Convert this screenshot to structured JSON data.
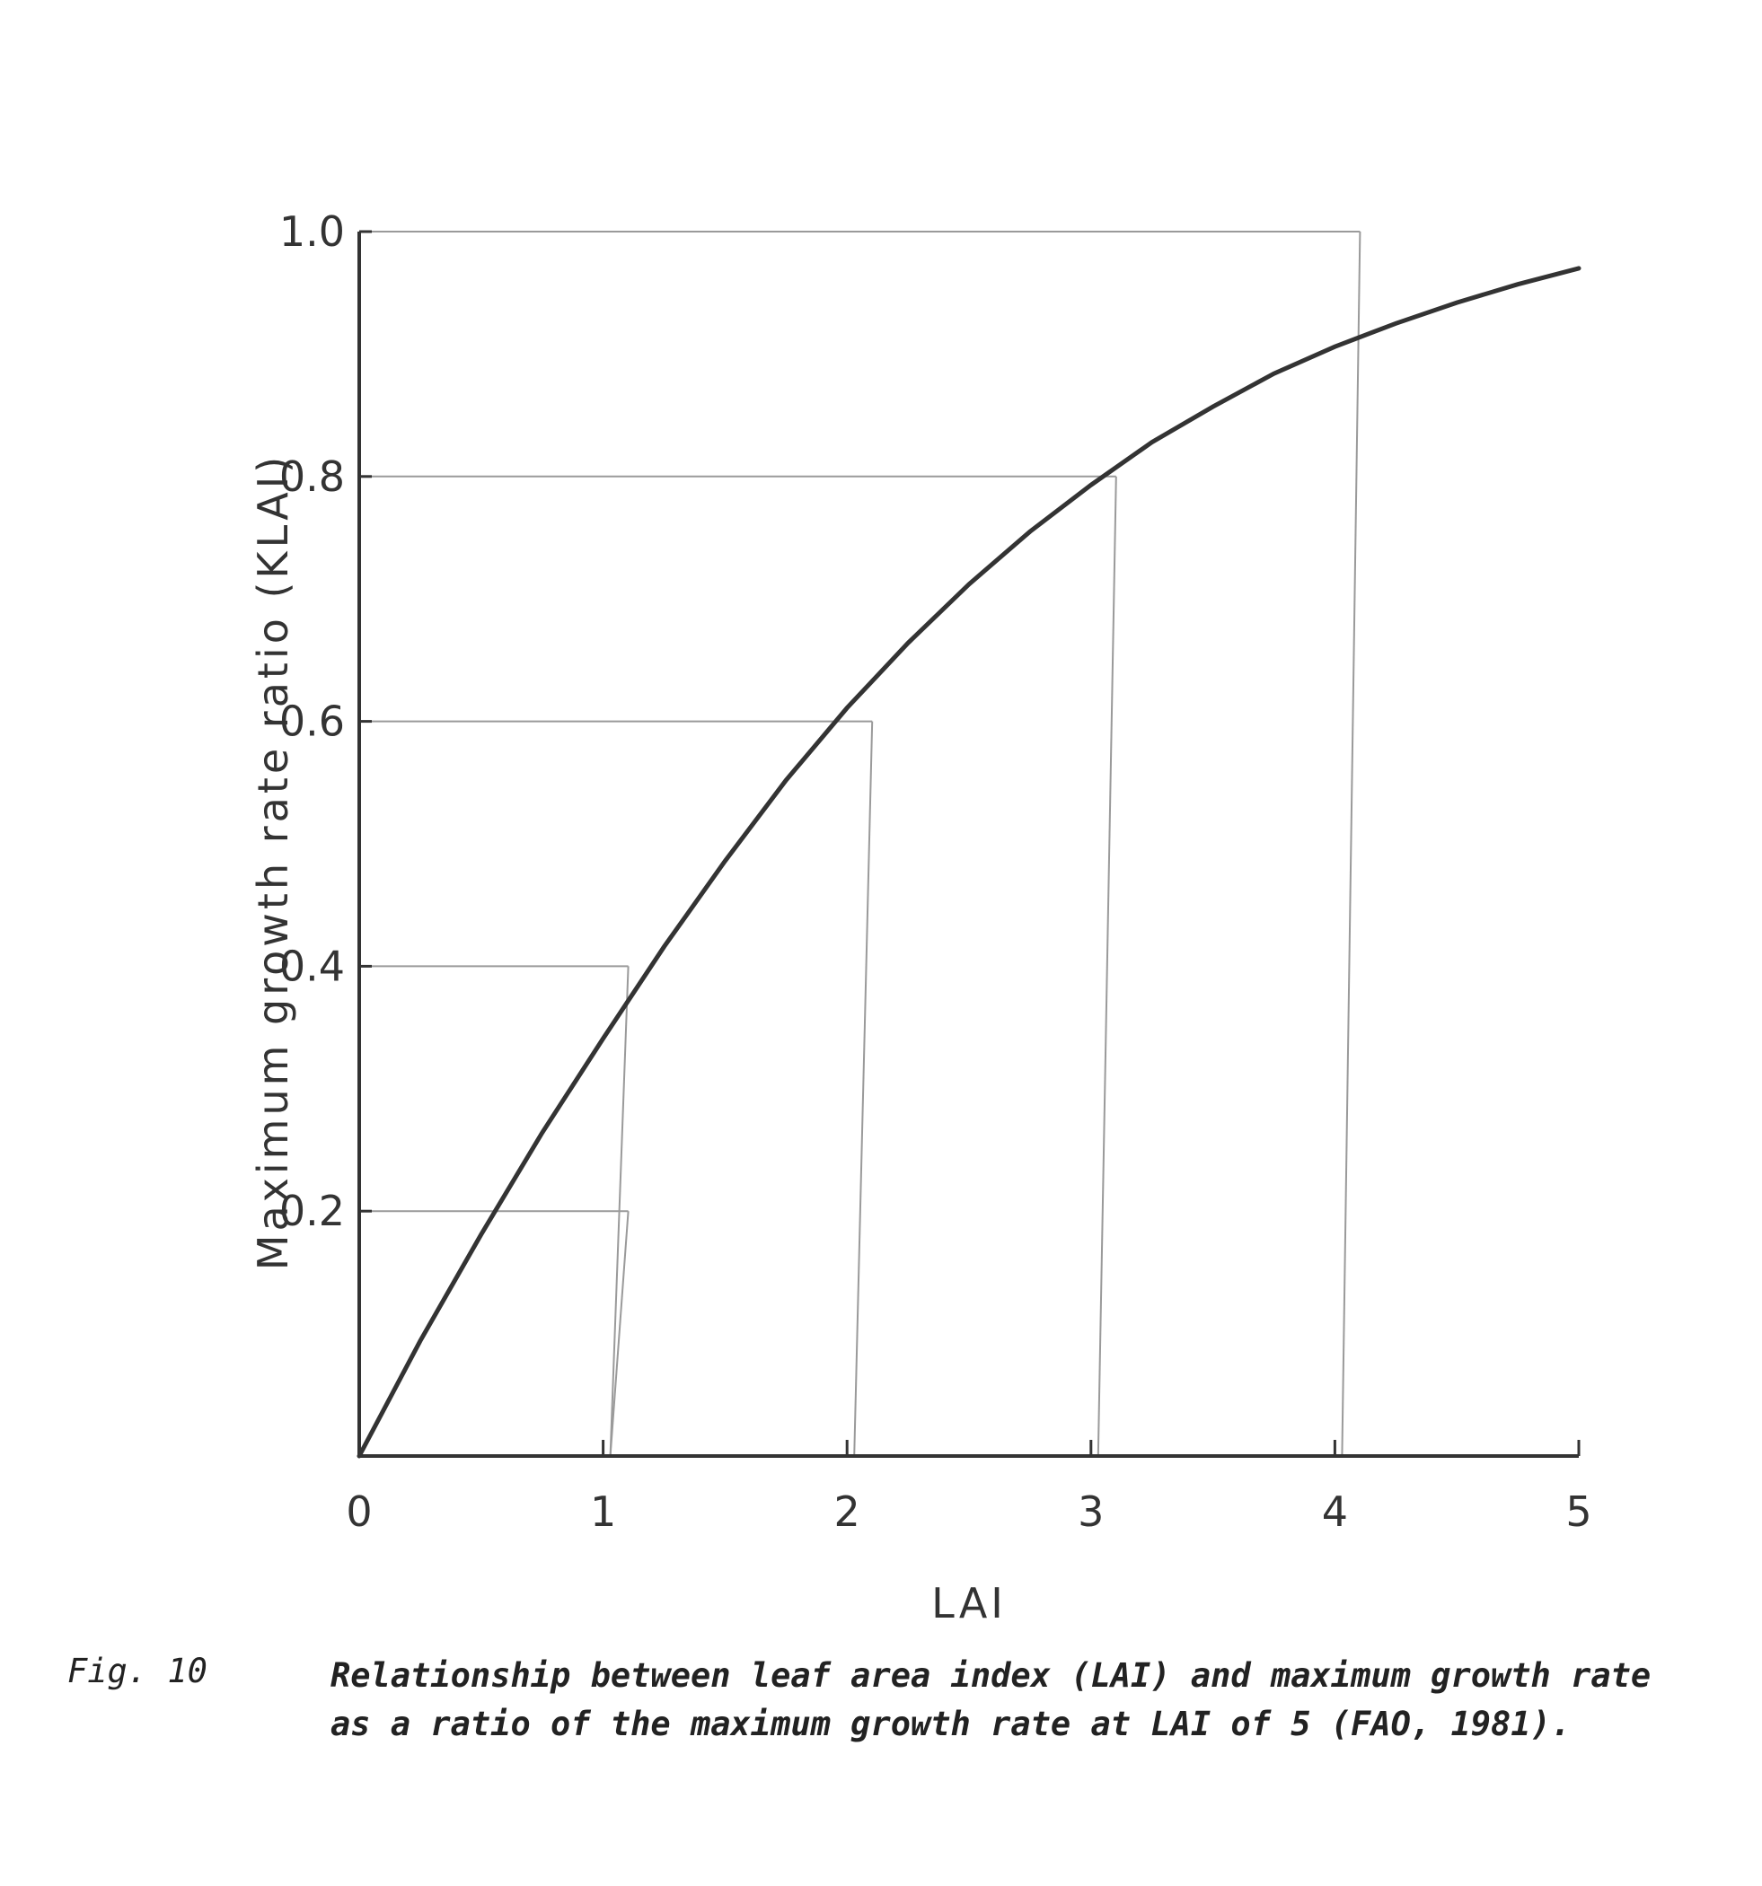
{
  "chart_data": {
    "type": "line",
    "xlabel": "LAI",
    "ylabel": "Maximum growth rate ratio (KLAI)",
    "xlim": [
      0,
      5
    ],
    "ylim": [
      0,
      1.0
    ],
    "x_ticks": [
      "0",
      "1",
      "2",
      "3",
      "4",
      "5"
    ],
    "y_ticks": [
      "0.2",
      "0.4",
      "0.6",
      "0.8",
      "1.0"
    ],
    "grid": false,
    "series": [
      {
        "x": [
          0,
          0.25,
          0.5,
          0.75,
          1.0,
          1.25,
          1.5,
          1.75,
          2.0,
          2.25,
          2.5,
          2.75,
          3.0,
          3.25,
          3.5,
          3.75,
          4.0,
          4.25,
          4.5,
          4.75,
          5.0
        ],
        "values": [
          0,
          0.094,
          0.181,
          0.264,
          0.341,
          0.416,
          0.486,
          0.552,
          0.611,
          0.664,
          0.712,
          0.755,
          0.793,
          0.828,
          0.857,
          0.884,
          0.906,
          0.925,
          0.942,
          0.957,
          0.97
        ]
      }
    ],
    "reference_lines": [
      {
        "lai": 1,
        "ratio": 0.4
      },
      {
        "lai": 2,
        "ratio": 0.6
      },
      {
        "lai": 3,
        "ratio": 0.8
      },
      {
        "lai": 4,
        "ratio": 1.0
      },
      {
        "lai": 1,
        "ratio": 0.2
      }
    ]
  },
  "caption": {
    "label": "Fig. 10",
    "text": "Relationship between leaf area index (LAI) and maximum growth rate as a ratio of the maximum growth rate at LAI of 5 (",
    "ref": "FAO, 1981",
    "end": ")."
  }
}
